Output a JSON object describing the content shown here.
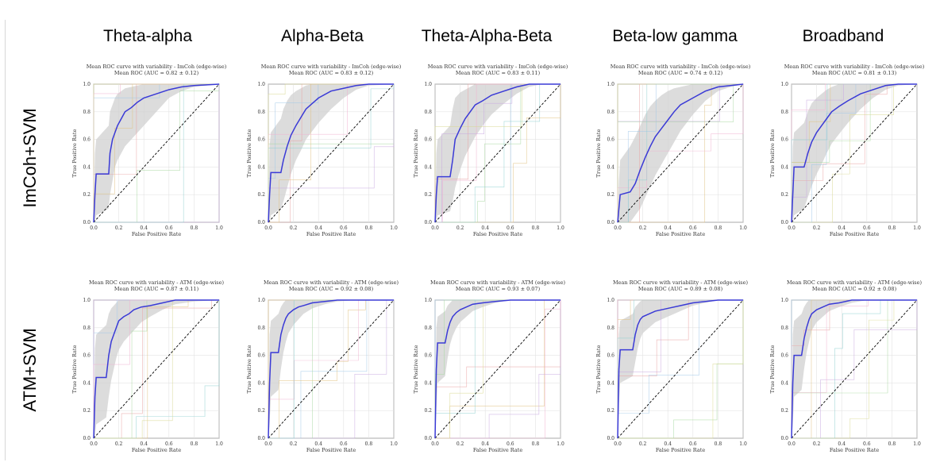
{
  "column_headers": [
    "Theta-alpha",
    "Alpha-Beta",
    "Theta-Alpha-Beta",
    "Beta-low gamma",
    "Broadband"
  ],
  "row_labels": [
    "ImCoh+SVM",
    "ATM+SVM"
  ],
  "colors": {
    "mean_curve": "#3a3ad6",
    "band_fill": "#d0d0d0",
    "chance_line": "#000000",
    "fold_colors": [
      "#e8a0a0",
      "#a0c8e8",
      "#a8d8a0",
      "#e0c080",
      "#c8a8e0",
      "#f0b0d0",
      "#90d0d0",
      "#d8d890"
    ]
  },
  "chart_data": [
    {
      "type": "line",
      "title": "Mean ROC curve with variability - ImCoh (edge-wise)",
      "subtitle": "Mean ROC (AUC = 0.82 ± 0.12)",
      "xlabel": "False Positive Rate",
      "ylabel": "True Positive Rate",
      "xlim": [
        0,
        1
      ],
      "ylim": [
        0,
        1
      ],
      "grid": true,
      "x": [
        0,
        0.01,
        0.02,
        0.12,
        0.13,
        0.15,
        0.17,
        0.19,
        0.22,
        0.25,
        0.3,
        0.35,
        0.4,
        0.5,
        0.6,
        0.7,
        0.8,
        1.0
      ],
      "tpr": [
        0,
        0.2,
        0.35,
        0.35,
        0.5,
        0.6,
        0.65,
        0.7,
        0.75,
        0.8,
        0.83,
        0.87,
        0.9,
        0.93,
        0.96,
        0.98,
        0.99,
        1.0
      ],
      "upper": [
        0,
        0.5,
        0.6,
        0.7,
        0.8,
        0.85,
        0.9,
        0.93,
        0.95,
        0.97,
        0.98,
        0.99,
        1,
        1,
        1,
        1,
        1,
        1
      ],
      "lower": [
        0,
        0,
        0.05,
        0.1,
        0.2,
        0.3,
        0.4,
        0.45,
        0.5,
        0.55,
        0.6,
        0.65,
        0.7,
        0.8,
        0.9,
        0.95,
        0.98,
        1
      ]
    },
    {
      "type": "line",
      "title": "Mean ROC curve with variability - ImCoh (edge-wise)",
      "subtitle": "Mean ROC (AUC = 0.83 ± 0.12)",
      "xlabel": "False Positive Rate",
      "ylabel": "True Positive Rate",
      "xlim": [
        0,
        1
      ],
      "ylim": [
        0,
        1
      ],
      "grid": true,
      "x": [
        0,
        0.01,
        0.02,
        0.1,
        0.12,
        0.15,
        0.18,
        0.22,
        0.26,
        0.3,
        0.35,
        0.4,
        0.5,
        0.6,
        0.7,
        0.8,
        1.0
      ],
      "tpr": [
        0,
        0.2,
        0.36,
        0.36,
        0.45,
        0.55,
        0.63,
        0.7,
        0.76,
        0.82,
        0.86,
        0.9,
        0.95,
        0.97,
        0.99,
        1.0,
        1.0
      ],
      "upper": [
        0,
        0.55,
        0.65,
        0.75,
        0.82,
        0.88,
        0.92,
        0.95,
        0.97,
        0.99,
        1,
        1,
        1,
        1,
        1,
        1,
        1
      ],
      "lower": [
        0,
        0,
        0.05,
        0.1,
        0.15,
        0.25,
        0.35,
        0.45,
        0.52,
        0.6,
        0.66,
        0.72,
        0.82,
        0.9,
        0.96,
        0.99,
        1
      ]
    },
    {
      "type": "line",
      "title": "Mean ROC curve with variability - ImCoh (edge-wise)",
      "subtitle": "Mean ROC (AUC = 0.83 ± 0.11)",
      "xlabel": "False Positive Rate",
      "ylabel": "True Positive Rate",
      "xlim": [
        0,
        1
      ],
      "ylim": [
        0,
        1
      ],
      "grid": true,
      "x": [
        0,
        0.01,
        0.02,
        0.12,
        0.14,
        0.16,
        0.2,
        0.24,
        0.28,
        0.32,
        0.38,
        0.45,
        0.55,
        0.65,
        0.75,
        0.85,
        1.0
      ],
      "tpr": [
        0,
        0.2,
        0.33,
        0.33,
        0.45,
        0.6,
        0.68,
        0.75,
        0.8,
        0.85,
        0.88,
        0.92,
        0.95,
        0.98,
        1.0,
        1.0,
        1.0
      ],
      "upper": [
        0,
        0.5,
        0.6,
        0.7,
        0.82,
        0.9,
        0.94,
        0.96,
        0.98,
        1,
        1,
        1,
        1,
        1,
        1,
        1,
        1
      ],
      "lower": [
        0,
        0,
        0.05,
        0.08,
        0.15,
        0.25,
        0.38,
        0.48,
        0.55,
        0.62,
        0.7,
        0.78,
        0.86,
        0.93,
        0.98,
        1,
        1
      ]
    },
    {
      "type": "line",
      "title": "Mean ROC curve with variability - ImCoh (edge-wise)",
      "subtitle": "Mean ROC (AUC = 0.74 ± 0.12)",
      "xlabel": "False Positive Rate",
      "ylabel": "True Positive Rate",
      "xlim": [
        0,
        1
      ],
      "ylim": [
        0,
        1
      ],
      "grid": true,
      "x": [
        0,
        0.01,
        0.02,
        0.1,
        0.14,
        0.18,
        0.22,
        0.26,
        0.3,
        0.35,
        0.4,
        0.45,
        0.5,
        0.6,
        0.7,
        0.8,
        0.9,
        1.0
      ],
      "tpr": [
        0,
        0.1,
        0.2,
        0.22,
        0.28,
        0.38,
        0.47,
        0.55,
        0.62,
        0.68,
        0.74,
        0.8,
        0.85,
        0.9,
        0.95,
        0.98,
        0.99,
        1.0
      ],
      "upper": [
        0,
        0.3,
        0.45,
        0.55,
        0.62,
        0.7,
        0.78,
        0.84,
        0.88,
        0.92,
        0.95,
        0.97,
        0.98,
        1,
        1,
        1,
        1,
        1
      ],
      "lower": [
        0,
        0,
        0,
        0,
        0.05,
        0.1,
        0.18,
        0.26,
        0.34,
        0.42,
        0.5,
        0.58,
        0.66,
        0.78,
        0.88,
        0.95,
        0.98,
        1
      ]
    },
    {
      "type": "line",
      "title": "Mean ROC curve with variability - ImCoh (edge-wise)",
      "subtitle": "Mean ROC (AUC = 0.81 ± 0.13)",
      "xlabel": "False Positive Rate",
      "ylabel": "True Positive Rate",
      "xlim": [
        0,
        1
      ],
      "ylim": [
        0,
        1
      ],
      "grid": true,
      "x": [
        0,
        0.01,
        0.02,
        0.1,
        0.13,
        0.16,
        0.2,
        0.24,
        0.28,
        0.32,
        0.38,
        0.45,
        0.55,
        0.65,
        0.75,
        0.85,
        1.0
      ],
      "tpr": [
        0,
        0.2,
        0.4,
        0.4,
        0.5,
        0.58,
        0.65,
        0.7,
        0.75,
        0.8,
        0.84,
        0.88,
        0.93,
        0.96,
        0.99,
        1.0,
        1.0
      ],
      "upper": [
        0,
        0.55,
        0.65,
        0.72,
        0.8,
        0.86,
        0.9,
        0.93,
        0.96,
        0.98,
        1,
        1,
        1,
        1,
        1,
        1,
        1
      ],
      "lower": [
        0,
        0,
        0.05,
        0.1,
        0.18,
        0.26,
        0.35,
        0.42,
        0.5,
        0.57,
        0.64,
        0.72,
        0.82,
        0.9,
        0.96,
        0.99,
        1
      ]
    },
    {
      "type": "line",
      "title": "Mean ROC curve with variability - ATM (edge-wise)",
      "subtitle": "Mean ROC (AUC = 0.87 ± 0.11)",
      "xlabel": "False Positive Rate",
      "ylabel": "True Positive Rate",
      "xlim": [
        0,
        1
      ],
      "ylim": [
        0,
        1
      ],
      "grid": true,
      "x": [
        0,
        0.01,
        0.02,
        0.1,
        0.12,
        0.14,
        0.16,
        0.18,
        0.2,
        0.24,
        0.28,
        0.32,
        0.38,
        0.45,
        0.55,
        0.65,
        0.8,
        1.0
      ],
      "tpr": [
        0,
        0.3,
        0.44,
        0.44,
        0.6,
        0.7,
        0.75,
        0.8,
        0.85,
        0.88,
        0.9,
        0.93,
        0.95,
        0.96,
        0.98,
        1.0,
        1.0,
        1.0
      ],
      "upper": [
        0,
        0.65,
        0.75,
        0.82,
        0.9,
        0.94,
        0.96,
        0.98,
        1,
        1,
        1,
        1,
        1,
        1,
        1,
        1,
        1,
        1
      ],
      "lower": [
        0,
        0,
        0.1,
        0.15,
        0.3,
        0.42,
        0.5,
        0.58,
        0.64,
        0.7,
        0.74,
        0.78,
        0.84,
        0.88,
        0.93,
        0.97,
        0.99,
        1
      ]
    },
    {
      "type": "line",
      "title": "Mean ROC curve with variability - ATM (edge-wise)",
      "subtitle": "Mean ROC (AUC = 0.92 ± 0.08)",
      "xlabel": "False Positive Rate",
      "ylabel": "True Positive Rate",
      "xlim": [
        0,
        1
      ],
      "ylim": [
        0,
        1
      ],
      "grid": true,
      "x": [
        0,
        0.01,
        0.02,
        0.08,
        0.1,
        0.12,
        0.14,
        0.16,
        0.2,
        0.24,
        0.28,
        0.35,
        0.45,
        0.55,
        0.7,
        1.0
      ],
      "tpr": [
        0,
        0.4,
        0.62,
        0.62,
        0.75,
        0.82,
        0.87,
        0.9,
        0.93,
        0.95,
        0.96,
        0.98,
        0.99,
        1.0,
        1.0,
        1.0
      ],
      "upper": [
        0,
        0.75,
        0.85,
        0.9,
        0.95,
        0.98,
        1,
        1,
        1,
        1,
        1,
        1,
        1,
        1,
        1,
        1
      ],
      "lower": [
        0,
        0.1,
        0.3,
        0.35,
        0.5,
        0.62,
        0.7,
        0.76,
        0.82,
        0.86,
        0.9,
        0.94,
        0.97,
        0.99,
        1,
        1
      ]
    },
    {
      "type": "line",
      "title": "Mean ROC curve with variability - ATM (edge-wise)",
      "subtitle": "Mean ROC (AUC = 0.93 ± 0.07)",
      "xlabel": "False Positive Rate",
      "ylabel": "True Positive Rate",
      "xlim": [
        0,
        1
      ],
      "ylim": [
        0,
        1
      ],
      "grid": true,
      "x": [
        0,
        0.01,
        0.02,
        0.08,
        0.1,
        0.12,
        0.14,
        0.17,
        0.2,
        0.25,
        0.3,
        0.38,
        0.48,
        0.6,
        0.75,
        1.0
      ],
      "tpr": [
        0,
        0.5,
        0.69,
        0.69,
        0.78,
        0.84,
        0.88,
        0.91,
        0.93,
        0.95,
        0.97,
        0.98,
        0.99,
        1.0,
        1.0,
        1.0
      ],
      "upper": [
        0,
        0.8,
        0.88,
        0.92,
        0.96,
        0.98,
        1,
        1,
        1,
        1,
        1,
        1,
        1,
        1,
        1,
        1
      ],
      "lower": [
        0,
        0.2,
        0.4,
        0.45,
        0.58,
        0.68,
        0.74,
        0.8,
        0.84,
        0.88,
        0.92,
        0.95,
        0.98,
        1,
        1,
        1
      ]
    },
    {
      "type": "line",
      "title": "Mean ROC curve with variability - ATM (edge-wise)",
      "subtitle": "Mean ROC (AUC = 0.89 ± 0.08)",
      "xlabel": "False Positive Rate",
      "ylabel": "True Positive Rate",
      "xlim": [
        0,
        1
      ],
      "ylim": [
        0,
        1
      ],
      "grid": true,
      "x": [
        0,
        0.01,
        0.02,
        0.12,
        0.14,
        0.16,
        0.18,
        0.2,
        0.25,
        0.3,
        0.4,
        0.5,
        0.6,
        0.7,
        0.8,
        1.0
      ],
      "tpr": [
        0,
        0.5,
        0.64,
        0.64,
        0.75,
        0.82,
        0.86,
        0.88,
        0.9,
        0.92,
        0.94,
        0.96,
        0.98,
        0.99,
        1.0,
        1.0
      ],
      "upper": [
        0,
        0.75,
        0.85,
        0.9,
        0.95,
        0.97,
        0.99,
        1,
        1,
        1,
        1,
        1,
        1,
        1,
        1,
        1
      ],
      "lower": [
        0,
        0.25,
        0.4,
        0.45,
        0.55,
        0.65,
        0.72,
        0.76,
        0.8,
        0.84,
        0.88,
        0.92,
        0.96,
        0.98,
        1,
        1
      ]
    },
    {
      "type": "line",
      "title": "Mean ROC curve with variability - ATM (edge-wise)",
      "subtitle": "Mean ROC (AUC = 0.92 ± 0.08)",
      "xlabel": "False Positive Rate",
      "ylabel": "True Positive Rate",
      "xlim": [
        0,
        1
      ],
      "ylim": [
        0,
        1
      ],
      "grid": true,
      "x": [
        0,
        0.01,
        0.02,
        0.08,
        0.1,
        0.12,
        0.14,
        0.16,
        0.2,
        0.25,
        0.3,
        0.38,
        0.48,
        0.6,
        0.75,
        1.0
      ],
      "tpr": [
        0,
        0.4,
        0.6,
        0.6,
        0.72,
        0.8,
        0.86,
        0.9,
        0.93,
        0.95,
        0.97,
        0.98,
        1.0,
        1.0,
        1.0,
        1.0
      ],
      "upper": [
        0,
        0.75,
        0.85,
        0.9,
        0.95,
        0.98,
        1,
        1,
        1,
        1,
        1,
        1,
        1,
        1,
        1,
        1
      ],
      "lower": [
        0,
        0.1,
        0.3,
        0.35,
        0.5,
        0.62,
        0.7,
        0.78,
        0.84,
        0.88,
        0.92,
        0.95,
        0.98,
        1,
        1,
        1
      ]
    }
  ]
}
